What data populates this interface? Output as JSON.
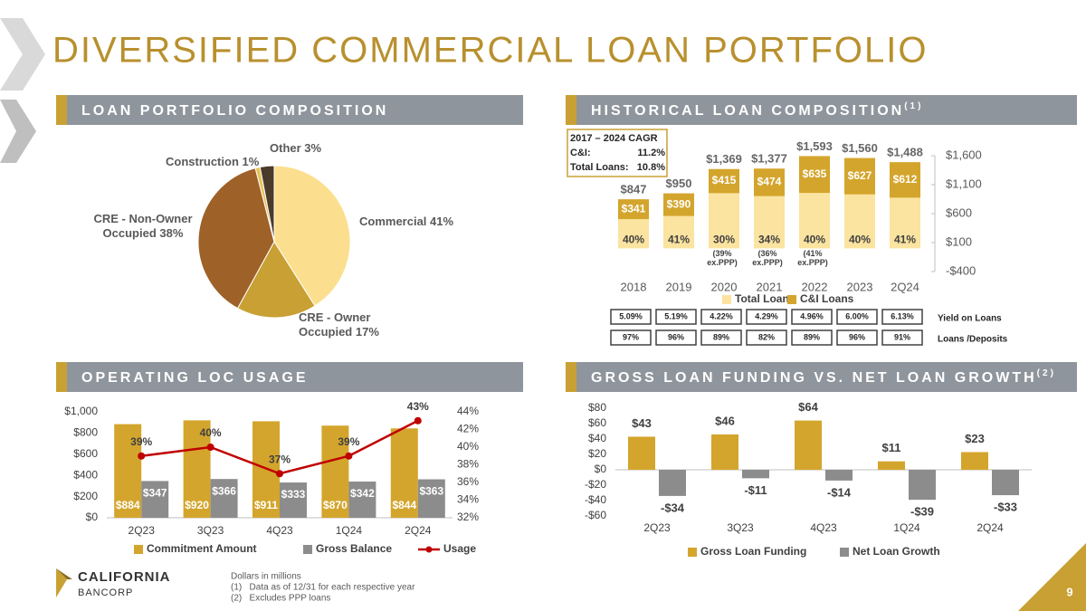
{
  "title": "DIVERSIFIED COMMERCIAL LOAN PORTFOLIO",
  "logo": {
    "line1": "CALIFORNIA",
    "line2": "BANCORP"
  },
  "footnotes": [
    "Dollars in millions",
    "(1)   Data as of 12/31 for each respective year",
    "(2)   Excludes PPP loans"
  ],
  "page_number": "9",
  "chart_data": [
    {
      "type": "pie",
      "title": "LOAN PORTFOLIO COMPOSITION",
      "categories": [
        "Commercial",
        "CRE - Owner Occupied",
        "CRE - Non-Owner Occupied",
        "Construction",
        "Other"
      ],
      "values": [
        41,
        17,
        38,
        1,
        3
      ],
      "value_labels": [
        "41%",
        "17%",
        "38%",
        "1%",
        "3%"
      ],
      "colors": [
        "#fbdf8e",
        "#c9a033",
        "#9e6128",
        "#e7c25a",
        "#4b3b2a"
      ]
    },
    {
      "type": "overlap_bar",
      "title": "HISTORICAL LOAN COMPOSITION",
      "title_note": "(1)",
      "categories": [
        "2018",
        "2019",
        "2020",
        "2021",
        "2022",
        "2023",
        "2Q24"
      ],
      "series": [
        {
          "name": "Total Loans",
          "color": "#fbe3a0",
          "values": [
            847,
            950,
            1369,
            1377,
            1593,
            1560,
            1488
          ],
          "value_labels": [
            "$847",
            "$950",
            "$1,369",
            "$1,377",
            "$1,593",
            "$1,560",
            "$1,488"
          ]
        },
        {
          "name": "C&I Loans",
          "color": "#d4a52c",
          "values": [
            341,
            390,
            415,
            474,
            635,
            627,
            612
          ],
          "value_labels": [
            "$341",
            "$390",
            "$415",
            "$474",
            "$635",
            "$627",
            "$612"
          ]
        }
      ],
      "share_labels": [
        "40%",
        "41%",
        "30%",
        "34%",
        "40%",
        "40%",
        "41%"
      ],
      "share_notes": [
        null,
        null,
        "(39% ex.PPP)",
        "(36% ex.PPP)",
        "(41% ex.PPP)",
        null,
        null
      ],
      "ylim": [
        -400,
        1600
      ],
      "yticks": [
        {
          "value": -400,
          "label": "-$400"
        },
        {
          "value": 100,
          "label": "$100"
        },
        {
          "value": 600,
          "label": "$600"
        },
        {
          "value": 1100,
          "label": "$1,100"
        },
        {
          "value": 1600,
          "label": "$1,600"
        }
      ],
      "legend": "bottom",
      "cagr": {
        "title": "2017 – 2024 CAGR",
        "rows": [
          [
            "C&I:",
            "11.2%"
          ],
          [
            "Total Loans:",
            "10.8%"
          ]
        ]
      },
      "metrics": [
        {
          "name": "Yield on Loans",
          "values": [
            "5.09%",
            "5.19%",
            "4.22%",
            "4.29%",
            "4.96%",
            "6.00%",
            "6.13%"
          ]
        },
        {
          "name": "Loans /Deposits",
          "values": [
            "97%",
            "96%",
            "89%",
            "82%",
            "89%",
            "96%",
            "91%"
          ]
        }
      ]
    },
    {
      "type": "bar_line",
      "title": "OPERATING LOC USAGE",
      "categories": [
        "2Q23",
        "3Q23",
        "4Q23",
        "1Q24",
        "2Q24"
      ],
      "series": [
        {
          "name": "Commitment Amount",
          "color": "#d4a52c",
          "values": [
            884,
            920,
            911,
            870,
            844
          ],
          "value_labels": [
            "$884",
            "$920",
            "$911",
            "$870",
            "$844"
          ]
        },
        {
          "name": "Gross Balance",
          "color": "#8c8c8c",
          "values": [
            347,
            366,
            333,
            342,
            363
          ],
          "value_labels": [
            "$347",
            "$366",
            "$333",
            "$342",
            "$363"
          ]
        },
        {
          "name": "Usage",
          "color": "#c00000",
          "values": [
            39,
            40,
            37,
            39,
            43
          ],
          "value_labels": [
            "39%",
            "40%",
            "37%",
            "39%",
            "43%"
          ],
          "axis": "y2"
        }
      ],
      "ylim": [
        0,
        1000
      ],
      "yticks": [
        {
          "value": 0,
          "label": "$0"
        },
        {
          "value": 200,
          "label": "$200"
        },
        {
          "value": 400,
          "label": "$400"
        },
        {
          "value": 600,
          "label": "$600"
        },
        {
          "value": 800,
          "label": "$800"
        },
        {
          "value": 1000,
          "label": "$1,000"
        }
      ],
      "y2lim": [
        32,
        44
      ],
      "y2ticks": [
        {
          "value": 32,
          "label": "32%"
        },
        {
          "value": 34,
          "label": "34%"
        },
        {
          "value": 36,
          "label": "36%"
        },
        {
          "value": 38,
          "label": "38%"
        },
        {
          "value": 40,
          "label": "40%"
        },
        {
          "value": 42,
          "label": "42%"
        },
        {
          "value": 44,
          "label": "44%"
        }
      ],
      "legend": "bottom"
    },
    {
      "type": "bar",
      "title": "GROSS LOAN FUNDING VS. NET LOAN GROWTH",
      "title_note": "(2)",
      "categories": [
        "2Q23",
        "3Q23",
        "4Q23",
        "1Q24",
        "2Q24"
      ],
      "series": [
        {
          "name": "Gross Loan Funding",
          "color": "#d4a52c",
          "values": [
            43,
            46,
            64,
            11,
            23
          ],
          "value_labels": [
            "$43",
            "$46",
            "$64",
            "$11",
            "$23"
          ]
        },
        {
          "name": "Net Loan Growth",
          "color": "#8c8c8c",
          "values": [
            -34,
            -11,
            -14,
            -39,
            -33
          ],
          "value_labels": [
            "-$34",
            "-$11",
            "-$14",
            "-$39",
            "-$33"
          ]
        }
      ],
      "ylim": [
        -60,
        80
      ],
      "yticks": [
        {
          "value": -60,
          "label": "-$60"
        },
        {
          "value": -40,
          "label": "-$40"
        },
        {
          "value": -20,
          "label": "-$20"
        },
        {
          "value": 0,
          "label": "$0"
        },
        {
          "value": 20,
          "label": "$20"
        },
        {
          "value": 40,
          "label": "$40"
        },
        {
          "value": 60,
          "label": "$60"
        },
        {
          "value": 80,
          "label": "$80"
        }
      ],
      "legend": "bottom"
    }
  ]
}
